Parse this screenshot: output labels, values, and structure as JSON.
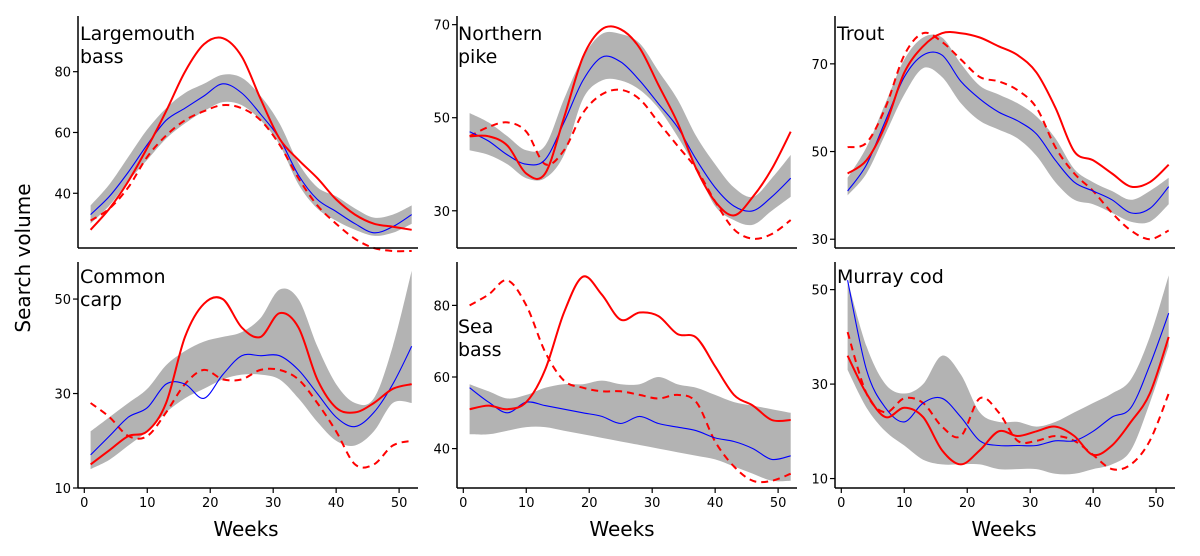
{
  "y_axis_label": "Search volume",
  "x_axis_label": "Weeks",
  "colors": {
    "observed": "#ff0000",
    "fitted": "#0000ff",
    "band": "#b3b3b3"
  },
  "chart_data": [
    {
      "type": "line",
      "title_lines": [
        "Largemouth",
        "bass"
      ],
      "xlim": [
        -1,
        53
      ],
      "ylim": [
        22,
        97
      ],
      "xticks": [],
      "yticks": [
        40,
        60,
        80
      ],
      "x": [
        1,
        4,
        7,
        10,
        13,
        16,
        19,
        22,
        25,
        28,
        31,
        34,
        37,
        40,
        43,
        46,
        49,
        52
      ],
      "series": [
        {
          "name": "band_upper",
          "values": [
            36,
            43,
            52,
            61,
            68,
            73,
            76,
            79,
            78,
            72,
            63,
            50,
            42,
            39,
            35,
            32,
            33,
            36
          ]
        },
        {
          "name": "band_lower",
          "values": [
            30,
            36,
            44,
            51,
            58,
            63,
            67,
            70,
            69,
            64,
            56,
            43,
            35,
            31,
            28,
            26,
            27,
            30
          ]
        },
        {
          "name": "fitted",
          "values": [
            33,
            39,
            47,
            56,
            64,
            68,
            72,
            76,
            73,
            66,
            58,
            46,
            38,
            34,
            30,
            27,
            29,
            33
          ]
        },
        {
          "name": "observed",
          "values": [
            28,
            35,
            44,
            55,
            67,
            80,
            89,
            91,
            85,
            71,
            58,
            51,
            45,
            38,
            33,
            30,
            29,
            28
          ]
        },
        {
          "name": "projected",
          "values": [
            31,
            35,
            42,
            52,
            59,
            64,
            67,
            69,
            68,
            64,
            56,
            45,
            36,
            30,
            25,
            22,
            21,
            21
          ]
        }
      ]
    },
    {
      "type": "line",
      "title_lines": [
        "Northern",
        "pike"
      ],
      "xlim": [
        -1,
        53
      ],
      "ylim": [
        22,
        71
      ],
      "xticks": [],
      "yticks": [
        30,
        50,
        70
      ],
      "x": [
        1,
        4,
        7,
        10,
        13,
        16,
        19,
        22,
        25,
        28,
        31,
        34,
        37,
        40,
        43,
        46,
        49,
        52
      ],
      "series": [
        {
          "name": "band_upper",
          "values": [
            51,
            49,
            46,
            43,
            44,
            54,
            63,
            68,
            68,
            66,
            60,
            54,
            46,
            40,
            35,
            33,
            37,
            42
          ]
        },
        {
          "name": "band_lower",
          "values": [
            43,
            42,
            40,
            37,
            37,
            42,
            54,
            58,
            58,
            56,
            52,
            46,
            39,
            31,
            28,
            27,
            30,
            33
          ]
        },
        {
          "name": "fitted",
          "values": [
            47,
            45,
            42,
            40,
            41,
            49,
            58,
            63,
            62,
            58,
            53,
            48,
            41,
            35,
            31,
            30,
            33,
            37
          ]
        },
        {
          "name": "observed",
          "values": [
            46,
            46,
            44,
            38,
            38,
            50,
            63,
            69,
            69,
            65,
            57,
            49,
            39,
            32,
            29,
            33,
            39,
            47
          ]
        },
        {
          "name": "projected",
          "values": [
            46,
            48,
            49,
            47,
            40,
            43,
            51,
            55,
            56,
            54,
            49,
            44,
            39,
            32,
            26,
            24,
            25,
            28
          ]
        }
      ]
    },
    {
      "type": "line",
      "title_lines": [
        "Trout"
      ],
      "xlim": [
        -1,
        53
      ],
      "ylim": [
        28,
        80
      ],
      "xticks": [],
      "yticks": [
        30,
        50,
        70
      ],
      "x": [
        1,
        4,
        7,
        10,
        13,
        16,
        19,
        22,
        25,
        28,
        31,
        34,
        37,
        40,
        43,
        46,
        49,
        52
      ],
      "series": [
        {
          "name": "band_upper",
          "values": [
            44,
            51,
            61,
            71,
            76,
            76,
            70,
            65,
            63,
            61,
            58,
            53,
            46,
            43,
            41,
            39,
            41,
            44
          ]
        },
        {
          "name": "band_lower",
          "values": [
            40,
            45,
            54,
            63,
            69,
            67,
            61,
            57,
            55,
            53,
            49,
            43,
            39,
            38,
            36,
            34,
            34,
            38
          ]
        },
        {
          "name": "fitted",
          "values": [
            41,
            47,
            57,
            67,
            72,
            72,
            66,
            62,
            59,
            57,
            54,
            48,
            43,
            41,
            39,
            36,
            37,
            42
          ]
        },
        {
          "name": "observed",
          "values": [
            45,
            48,
            56,
            68,
            74,
            77,
            77,
            76,
            74,
            72,
            68,
            60,
            50,
            48,
            45,
            42,
            43,
            47
          ]
        },
        {
          "name": "projected",
          "values": [
            51,
            52,
            60,
            72,
            77,
            75,
            71,
            67,
            66,
            64,
            60,
            51,
            45,
            41,
            36,
            32,
            30,
            32
          ]
        }
      ]
    },
    {
      "type": "line",
      "title_lines": [
        "Common",
        "carp"
      ],
      "xlim": [
        -1,
        53
      ],
      "ylim": [
        10,
        57
      ],
      "xticks": [
        0,
        10,
        20,
        30,
        40,
        50
      ],
      "yticks": [
        10,
        30,
        50
      ],
      "x": [
        1,
        4,
        7,
        10,
        13,
        16,
        19,
        22,
        25,
        28,
        31,
        34,
        37,
        40,
        43,
        46,
        49,
        52
      ],
      "series": [
        {
          "name": "band_upper",
          "values": [
            22,
            25,
            28,
            31,
            36,
            39,
            41,
            42,
            43,
            46,
            52,
            50,
            40,
            32,
            28,
            29,
            40,
            56
          ]
        },
        {
          "name": "band_lower",
          "values": [
            14,
            16,
            19,
            22,
            26,
            29,
            31,
            33,
            34,
            34,
            33,
            29,
            24,
            20,
            19,
            22,
            28,
            28
          ]
        },
        {
          "name": "fitted",
          "values": [
            17,
            21,
            25,
            27,
            32,
            32,
            29,
            34,
            38,
            38,
            38,
            35,
            30,
            25,
            23,
            26,
            32,
            40
          ]
        },
        {
          "name": "observed",
          "values": [
            15,
            18,
            21,
            22,
            28,
            42,
            49,
            50,
            44,
            42,
            47,
            44,
            33,
            27,
            26,
            28,
            31,
            32
          ]
        },
        {
          "name": "projected",
          "values": [
            28,
            25,
            21,
            21,
            26,
            32,
            35,
            33,
            33,
            35,
            35,
            33,
            28,
            22,
            15,
            15,
            19,
            20
          ]
        }
      ]
    },
    {
      "type": "line",
      "title_lines": [
        "Sea",
        "bass"
      ],
      "xlim": [
        -1,
        53
      ],
      "ylim": [
        29,
        91
      ],
      "xticks": [
        0,
        10,
        20,
        30,
        40,
        50
      ],
      "yticks": [
        40,
        60,
        80
      ],
      "x": [
        1,
        4,
        7,
        10,
        13,
        16,
        19,
        22,
        25,
        28,
        31,
        34,
        37,
        40,
        43,
        46,
        49,
        52
      ],
      "series": [
        {
          "name": "band_upper",
          "values": [
            58,
            56,
            54,
            55,
            57,
            58,
            58,
            59,
            58,
            58,
            60,
            58,
            57,
            55,
            53,
            52,
            51,
            50
          ]
        },
        {
          "name": "band_lower",
          "values": [
            44,
            44,
            45,
            46,
            46,
            45,
            44,
            43,
            42,
            41,
            40,
            39,
            38,
            37,
            35,
            33,
            31,
            31
          ]
        },
        {
          "name": "fitted",
          "values": [
            57,
            53,
            50,
            53,
            52,
            51,
            50,
            49,
            47,
            49,
            47,
            46,
            45,
            43,
            42,
            40,
            37,
            38
          ]
        },
        {
          "name": "observed",
          "values": [
            51,
            52,
            51,
            53,
            62,
            78,
            88,
            83,
            76,
            78,
            77,
            72,
            71,
            63,
            55,
            52,
            48,
            48
          ]
        },
        {
          "name": "projected",
          "values": [
            80,
            83,
            87,
            80,
            67,
            59,
            57,
            56,
            56,
            55,
            54,
            55,
            53,
            42,
            35,
            31,
            31,
            33
          ]
        }
      ]
    },
    {
      "type": "line",
      "title_lines": [
        "Murray cod"
      ],
      "xlim": [
        -1,
        53
      ],
      "ylim": [
        8,
        55
      ],
      "xticks": [
        0,
        10,
        20,
        30,
        40,
        50
      ],
      "yticks": [
        10,
        30,
        50
      ],
      "x": [
        1,
        4,
        7,
        10,
        13,
        16,
        19,
        22,
        25,
        28,
        31,
        34,
        37,
        40,
        43,
        46,
        49,
        52
      ],
      "series": [
        {
          "name": "band_upper",
          "values": [
            52,
            38,
            30,
            28,
            30,
            36,
            32,
            24,
            22,
            22,
            21,
            22,
            24,
            26,
            28,
            31,
            40,
            53
          ]
        },
        {
          "name": "band_lower",
          "values": [
            33,
            25,
            20,
            17,
            14,
            13,
            13,
            13,
            12,
            12,
            12,
            11,
            11,
            12,
            13,
            16,
            26,
            38
          ]
        },
        {
          "name": "fitted",
          "values": [
            52,
            33,
            25,
            22,
            26,
            27,
            23,
            18,
            17,
            17,
            17,
            18,
            18,
            20,
            23,
            25,
            34,
            45
          ]
        },
        {
          "name": "observed",
          "values": [
            36,
            28,
            23,
            25,
            23,
            16,
            13,
            16,
            20,
            19,
            20,
            21,
            19,
            15,
            17,
            22,
            28,
            40
          ]
        },
        {
          "name": "projected",
          "values": [
            41,
            28,
            24,
            27,
            26,
            21,
            19,
            27,
            24,
            18,
            18,
            19,
            18,
            15,
            12,
            13,
            18,
            28
          ]
        }
      ]
    }
  ]
}
